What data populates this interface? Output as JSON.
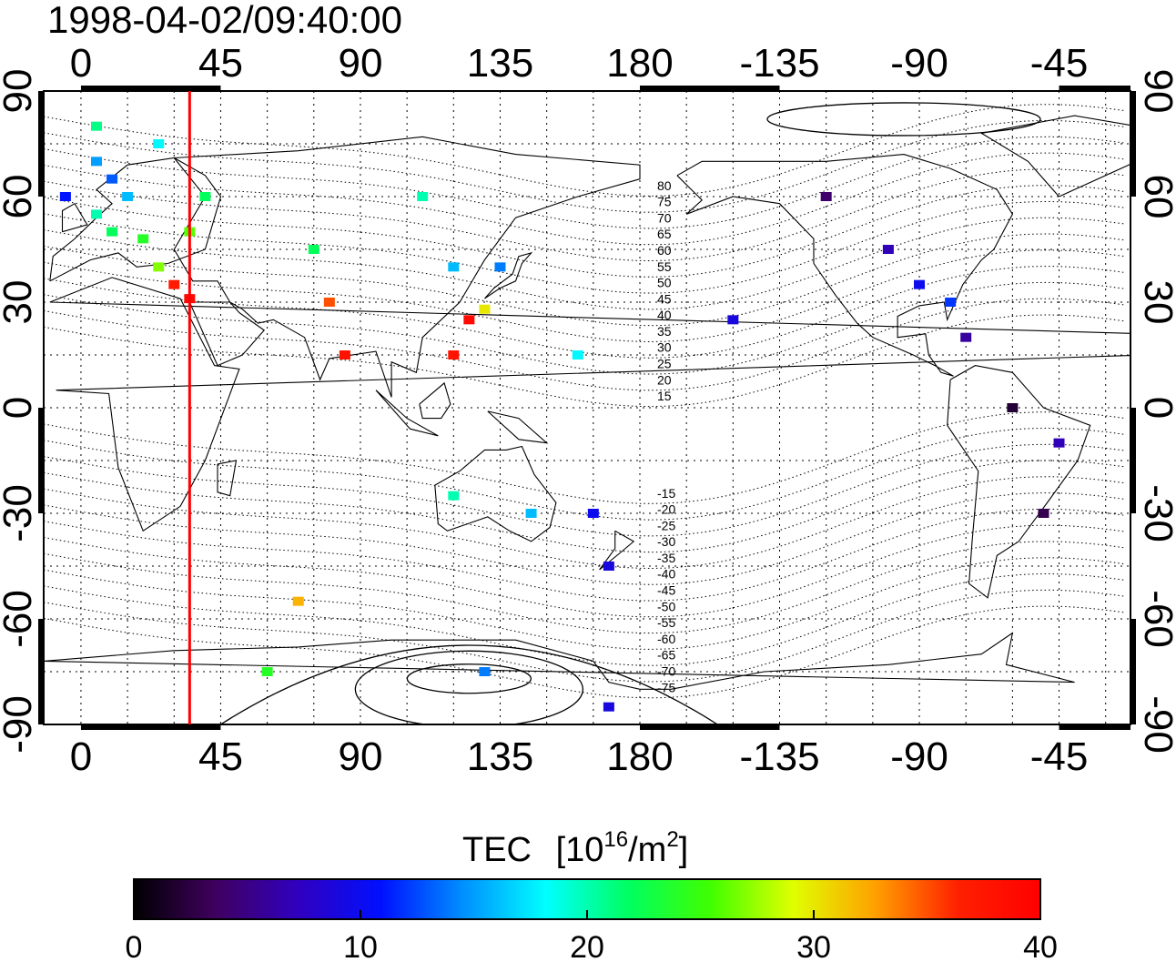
{
  "title": "1998-04-02/09:40:00",
  "colorbar": {
    "title": "TEC",
    "unit_prefix": "[10",
    "unit_exp1": "16",
    "unit_mid": "/m",
    "unit_exp2": "2",
    "unit_suffix": "]",
    "ticks": [
      "0",
      "10",
      "20",
      "30",
      "40"
    ],
    "range": [
      0,
      40
    ],
    "colormap": [
      "#000000",
      "#400060",
      "#3000c0",
      "#0010ff",
      "#0090ff",
      "#00ffff",
      "#00ff60",
      "#40ff00",
      "#e0ff00",
      "#ffa000",
      "#ff2000",
      "#ff0000"
    ]
  },
  "axes": {
    "lon_ticks": [
      "0",
      "45",
      "90",
      "135",
      "180",
      "-135",
      "-90",
      "-45"
    ],
    "lat_ticks": [
      "90",
      "60",
      "30",
      "0",
      "-30",
      "-60",
      "-90"
    ],
    "lon_range": [
      -12,
      338
    ],
    "lat_range": [
      -90,
      90
    ]
  },
  "marker": {
    "lon": 35,
    "color": "#ff0000"
  },
  "contour_labels": [
    "80",
    "75",
    "70",
    "65",
    "60",
    "55",
    "50",
    "45",
    "40",
    "35",
    "30",
    "25",
    "20",
    "15",
    "-15",
    "-20",
    "-25",
    "-30",
    "-35",
    "-40",
    "-45",
    "-50",
    "-55",
    "-60",
    "-65",
    "-70",
    "-75"
  ],
  "tec_points": [
    {
      "lon": 5,
      "lat": 70,
      "tec": 15
    },
    {
      "lon": 10,
      "lat": 65,
      "tec": 13
    },
    {
      "lon": 15,
      "lat": 60,
      "tec": 16
    },
    {
      "lon": 5,
      "lat": 55,
      "tec": 20
    },
    {
      "lon": 10,
      "lat": 50,
      "tec": 22
    },
    {
      "lon": 20,
      "lat": 48,
      "tec": 24
    },
    {
      "lon": 25,
      "lat": 40,
      "tec": 27
    },
    {
      "lon": 30,
      "lat": 35,
      "tec": 37
    },
    {
      "lon": 35,
      "lat": 31,
      "tec": 39
    },
    {
      "lon": 25,
      "lat": 75,
      "tec": 18
    },
    {
      "lon": 5,
      "lat": 80,
      "tec": 21
    },
    {
      "lon": -5,
      "lat": 60,
      "tec": 11
    },
    {
      "lon": 40,
      "lat": 60,
      "tec": 22
    },
    {
      "lon": 35,
      "lat": 50,
      "tec": 26
    },
    {
      "lon": 75,
      "lat": 45,
      "tec": 22
    },
    {
      "lon": 110,
      "lat": 60,
      "tec": 20
    },
    {
      "lon": 120,
      "lat": 40,
      "tec": 16
    },
    {
      "lon": 135,
      "lat": 40,
      "tec": 14
    },
    {
      "lon": 130,
      "lat": 28,
      "tec": 30
    },
    {
      "lon": 125,
      "lat": 25,
      "tec": 39
    },
    {
      "lon": 120,
      "lat": 15,
      "tec": 38
    },
    {
      "lon": 80,
      "lat": 30,
      "tec": 35
    },
    {
      "lon": 85,
      "lat": 15,
      "tec": 38
    },
    {
      "lon": 160,
      "lat": 15,
      "tec": 18
    },
    {
      "lon": 145,
      "lat": -30,
      "tec": 16
    },
    {
      "lon": 120,
      "lat": -25,
      "tec": 20
    },
    {
      "lon": 165,
      "lat": -30,
      "tec": 10
    },
    {
      "lon": 170,
      "lat": -45,
      "tec": 9
    },
    {
      "lon": 70,
      "lat": -55,
      "tec": 32
    },
    {
      "lon": 60,
      "lat": -75,
      "tec": 24
    },
    {
      "lon": 130,
      "lat": -75,
      "tec": 14
    },
    {
      "lon": 170,
      "lat": -85,
      "tec": 9
    },
    {
      "lon": -120,
      "lat": 60,
      "tec": 4
    },
    {
      "lon": -100,
      "lat": 45,
      "tec": 7
    },
    {
      "lon": -90,
      "lat": 35,
      "tec": 10
    },
    {
      "lon": -80,
      "lat": 30,
      "tec": 12
    },
    {
      "lon": -75,
      "lat": 20,
      "tec": 6
    },
    {
      "lon": -150,
      "lat": 25,
      "tec": 9
    },
    {
      "lon": -45,
      "lat": -10,
      "tec": 7
    },
    {
      "lon": -50,
      "lat": -30,
      "tec": 3
    },
    {
      "lon": -60,
      "lat": 0,
      "tec": 2
    }
  ]
}
